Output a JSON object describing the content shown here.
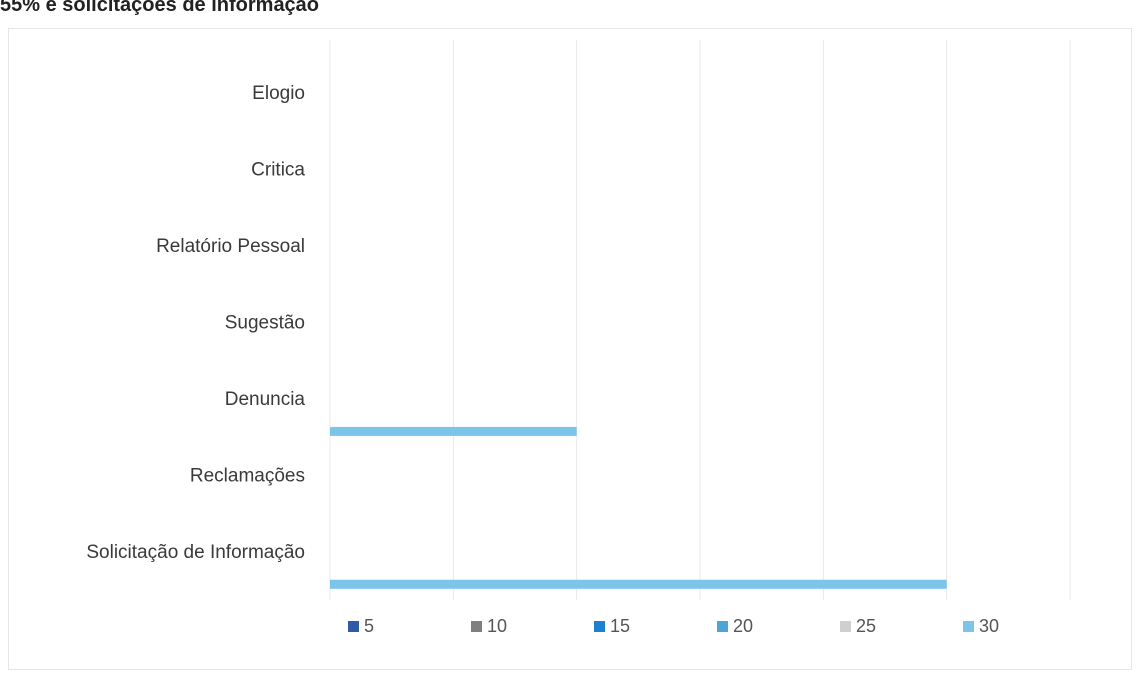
{
  "title": "55% e solicitações de informação",
  "chart_data": {
    "type": "bar",
    "orientation": "horizontal",
    "categories": [
      "Elogio",
      "Critica",
      "Relatório Pessoal",
      "Sugestão",
      "Denuncia",
      "Reclamações",
      "Solicitação de Informação"
    ],
    "series": [
      {
        "name": "5",
        "color": "#2f5aa8",
        "values": [
          0,
          0,
          0,
          0,
          0,
          0,
          0
        ]
      },
      {
        "name": "10",
        "color": "#7f7f7f",
        "values": [
          0,
          0,
          0,
          0,
          0,
          0,
          0
        ]
      },
      {
        "name": "15",
        "color": "#1f7fd0",
        "values": [
          0,
          0,
          0,
          0,
          0,
          0,
          0
        ]
      },
      {
        "name": "20",
        "color": "#4ea3d9",
        "values": [
          0,
          0,
          0,
          0,
          0,
          0,
          0
        ]
      },
      {
        "name": "25",
        "color": "#cfcfcf",
        "values": [
          0,
          0,
          0,
          0,
          0,
          0,
          0
        ]
      },
      {
        "name": "30",
        "color": "#7cc4e8",
        "values": [
          0,
          0,
          0,
          0,
          12,
          0,
          30
        ]
      }
    ],
    "xlim": [
      0,
      36
    ],
    "grid": true,
    "legend": "bottom"
  }
}
